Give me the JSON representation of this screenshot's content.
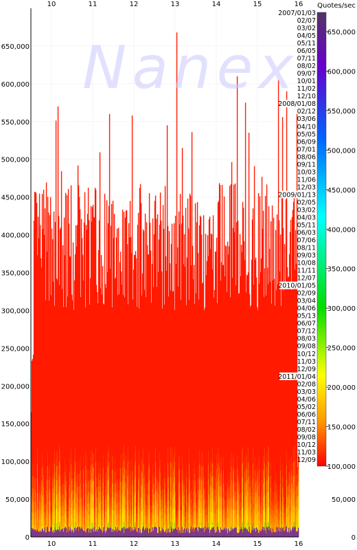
{
  "chart_data": {
    "type": "bar",
    "unit_label": "Quotes/sec",
    "watermark": "Nanex",
    "x_ticks": [
      "10",
      "11",
      "12",
      "13",
      "14",
      "15",
      "16"
    ],
    "x_range": [
      9.5,
      16
    ],
    "y_ticks": [
      "0",
      "50,000",
      "100,000",
      "150,000",
      "200,000",
      "250,000",
      "300,000",
      "350,000",
      "400,000",
      "450,000",
      "500,000",
      "550,000",
      "600,000",
      "650,000"
    ],
    "ylim": [
      0,
      700000
    ],
    "color_scale": {
      "ticks": [
        "100,000",
        "150,000",
        "200,000",
        "250,000",
        "300,000",
        "350,000",
        "400,000",
        "450,000",
        "500,000",
        "550,000",
        "600,000",
        "650,000"
      ],
      "range": [
        100000,
        650000
      ],
      "colors": [
        "#ff0000",
        "#ff9900",
        "#ffff00",
        "#00dd00",
        "#00ffff",
        "#0066ff",
        "#6600cc",
        "#553366"
      ]
    },
    "series_dates": [
      {
        "label": "2007/01/03",
        "year_start": true
      },
      {
        "label": "02/07"
      },
      {
        "label": "03/02"
      },
      {
        "label": "04/05"
      },
      {
        "label": "05/11"
      },
      {
        "label": "06/05"
      },
      {
        "label": "07/11"
      },
      {
        "label": "08/02"
      },
      {
        "label": "09/07"
      },
      {
        "label": "10/01"
      },
      {
        "label": "11/02"
      },
      {
        "label": "12/10"
      },
      {
        "label": "2008/01/08",
        "year_start": true
      },
      {
        "label": "02/12"
      },
      {
        "label": "03/06"
      },
      {
        "label": "04/10"
      },
      {
        "label": "05/05"
      },
      {
        "label": "06/09"
      },
      {
        "label": "07/01"
      },
      {
        "label": "08/06"
      },
      {
        "label": "09/11"
      },
      {
        "label": "10/03"
      },
      {
        "label": "11/06"
      },
      {
        "label": "12/03"
      },
      {
        "label": "2009/01/13",
        "year_start": true
      },
      {
        "label": "02/05"
      },
      {
        "label": "03/02"
      },
      {
        "label": "04/03"
      },
      {
        "label": "05/11"
      },
      {
        "label": "06/03"
      },
      {
        "label": "07/06"
      },
      {
        "label": "08/11"
      },
      {
        "label": "09/03"
      },
      {
        "label": "10/08"
      },
      {
        "label": "11/11"
      },
      {
        "label": "12/07"
      },
      {
        "label": "2010/01/05",
        "year_start": true
      },
      {
        "label": "02/09"
      },
      {
        "label": "03/04"
      },
      {
        "label": "04/06"
      },
      {
        "label": "05/13"
      },
      {
        "label": "06/07"
      },
      {
        "label": "07/12"
      },
      {
        "label": "08/03"
      },
      {
        "label": "09/08"
      },
      {
        "label": "10/12"
      },
      {
        "label": "11/03"
      },
      {
        "label": "12/09"
      },
      {
        "label": "2011/01/04",
        "year_start": true
      },
      {
        "label": "02/08"
      },
      {
        "label": "03/03"
      },
      {
        "label": "04/06"
      },
      {
        "label": "05/02"
      },
      {
        "label": "06/06"
      },
      {
        "label": "07/11"
      },
      {
        "label": "08/02"
      },
      {
        "label": "09/08"
      },
      {
        "label": "10/12"
      },
      {
        "label": "11/03"
      },
      {
        "label": "12/09"
      }
    ],
    "peaks": [
      {
        "x": 13.03,
        "y": 668000
      },
      {
        "x": 10.15,
        "y": 570000
      },
      {
        "x": 11.4,
        "y": 560000
      },
      {
        "x": 11.95,
        "y": 558000
      },
      {
        "x": 14.5,
        "y": 610000
      },
      {
        "x": 15.5,
        "y": 605000
      },
      {
        "x": 15.7,
        "y": 590000
      },
      {
        "x": 14.7,
        "y": 575000
      },
      {
        "x": 12.8,
        "y": 545000
      },
      {
        "x": 15.95,
        "y": 560000
      }
    ],
    "base_band": {
      "low": 0,
      "high": 150000
    },
    "core_band": {
      "low": 300000,
      "high": 470000
    },
    "grid": true,
    "legend": "right"
  }
}
